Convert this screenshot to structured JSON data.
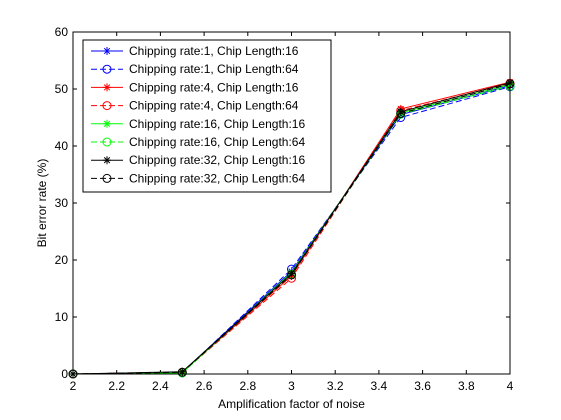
{
  "chart_data": {
    "type": "line",
    "title": "",
    "xlabel": "Amplification factor of noise",
    "ylabel": "Bit error rate (%)",
    "xlim": [
      2,
      4
    ],
    "ylim": [
      0,
      60
    ],
    "xticks": [
      2,
      2.2,
      2.4,
      2.6,
      2.8,
      3,
      3.2,
      3.4,
      3.6,
      3.8,
      4
    ],
    "xtick_labels": [
      "2",
      "2.2",
      "2.4",
      "2.6",
      "2.8",
      "3",
      "3.2",
      "3.4",
      "3.6",
      "3.8",
      "4"
    ],
    "yticks": [
      0,
      10,
      20,
      30,
      40,
      50,
      60
    ],
    "ytick_labels": [
      "0",
      "10",
      "20",
      "30",
      "40",
      "50",
      "60"
    ],
    "grid": false,
    "legend_position": "top-left",
    "x": [
      2,
      2.5,
      3,
      3.5,
      4
    ],
    "series": [
      {
        "name": "Chipping rate:1, Chip Length:16",
        "color": "#0000ff",
        "line_style": "solid",
        "marker": "asterisk",
        "values": [
          0,
          0.3,
          18.0,
          45.5,
          50.6
        ]
      },
      {
        "name": "Chipping rate:1, Chip Length:64",
        "color": "#0000ff",
        "line_style": "dashed",
        "marker": "circle",
        "values": [
          0,
          0.2,
          18.4,
          45.0,
          50.4
        ]
      },
      {
        "name": "Chipping rate:4, Chip Length:16",
        "color": "#ff0000",
        "line_style": "solid",
        "marker": "asterisk",
        "values": [
          0,
          0.3,
          17.2,
          46.5,
          51.2
        ]
      },
      {
        "name": "Chipping rate:4, Chip Length:64",
        "color": "#ff0000",
        "line_style": "dashed",
        "marker": "circle",
        "values": [
          0,
          0.3,
          16.8,
          46.2,
          51.0
        ]
      },
      {
        "name": "Chipping rate:16, Chip Length:16",
        "color": "#00ff00",
        "line_style": "solid",
        "marker": "asterisk",
        "values": [
          0,
          0.2,
          17.8,
          45.8,
          50.8
        ]
      },
      {
        "name": "Chipping rate:16, Chip Length:64",
        "color": "#00ff00",
        "line_style": "dashed",
        "marker": "circle",
        "values": [
          0,
          0.2,
          17.5,
          45.6,
          50.5
        ]
      },
      {
        "name": "Chipping rate:32, Chip Length:16",
        "color": "#000000",
        "line_style": "solid",
        "marker": "asterisk",
        "values": [
          0,
          0.4,
          17.6,
          46.0,
          51.1
        ]
      },
      {
        "name": "Chipping rate:32, Chip Length:64",
        "color": "#000000",
        "line_style": "dashed",
        "marker": "circle",
        "values": [
          0,
          0.3,
          17.4,
          45.7,
          50.9
        ]
      }
    ]
  }
}
